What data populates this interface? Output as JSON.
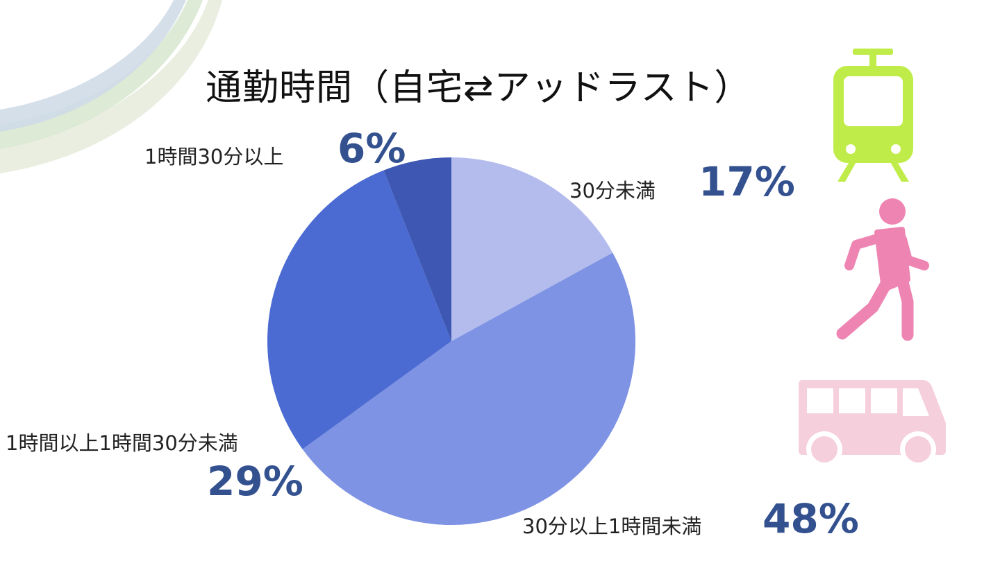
{
  "chart_data": {
    "type": "pie",
    "title": "通勤時間（自宅⇄アッドラスト）",
    "start_angle_deg": 0,
    "direction": "clockwise",
    "slices": [
      {
        "label": "30分未満",
        "value": 17,
        "value_label": "17%",
        "color": "#b3bced"
      },
      {
        "label": "30分以上1時間未満",
        "value": 48,
        "value_label": "48%",
        "color": "#7f93e4"
      },
      {
        "label": "1時間以上1時間30分未満",
        "value": 29,
        "value_label": "29%",
        "color": "#4b6bd2"
      },
      {
        "label": "1時間30分以上",
        "value": 6,
        "value_label": "6%",
        "color": "#3d57b2"
      }
    ],
    "legend": "none"
  },
  "icons": [
    "tram-icon",
    "walking-person-icon",
    "bus-icon"
  ],
  "colors": {
    "percent_text": "#33508f",
    "tram_icon": "#c0ec4a",
    "walker_icon": "#ee84b2",
    "bus_icon": "#f5cfdc"
  }
}
